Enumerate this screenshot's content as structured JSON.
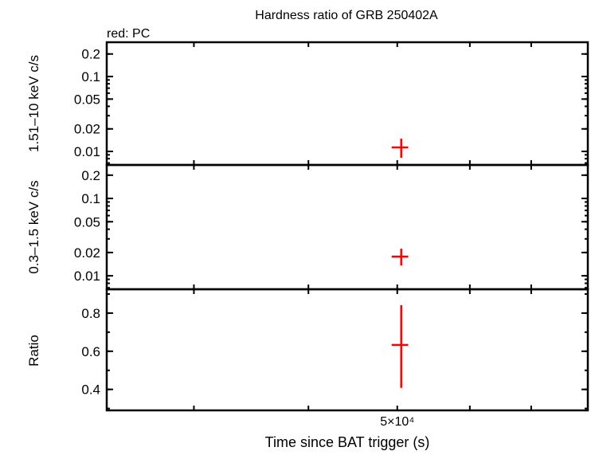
{
  "chart_data": {
    "type": "scatter",
    "title": "Hardness ratio of GRB 250402A",
    "legend_note": "red: PC",
    "xlabel": "Time since BAT trigger (s)",
    "xscale": "log",
    "xlim": [
      24100,
      80700
    ],
    "x_tick_labels": [
      {
        "value": 50000,
        "label": "5×10⁴"
      }
    ],
    "x_ticks_unlabeled": [
      30000,
      40000,
      60000,
      70000
    ],
    "colors": {
      "PC": "#ff0000",
      "axes": "#000000"
    },
    "panels": [
      {
        "ylabel": "1.51–10 keV c/s",
        "yscale": "log",
        "ylim": [
          0.0066,
          0.287
        ],
        "y_tick_labels": [
          "0.2",
          "0.1",
          "0.05",
          "0.02",
          "0.01"
        ],
        "y_tick_values": [
          0.2,
          0.1,
          0.05,
          0.02,
          0.01
        ],
        "points": [
          {
            "series": "PC",
            "x": 50500,
            "xerr": [
              49300,
              51400
            ],
            "y": 0.0113,
            "yerr": [
              0.0082,
              0.0148
            ]
          }
        ]
      },
      {
        "ylabel": "0.3–1.5 keV c/s",
        "yscale": "log",
        "ylim": [
          0.0067,
          0.271
        ],
        "y_tick_labels": [
          "0.2",
          "0.1",
          "0.05",
          "0.02",
          "0.01"
        ],
        "y_tick_values": [
          0.2,
          0.1,
          0.05,
          0.02,
          0.01
        ],
        "points": [
          {
            "series": "PC",
            "x": 50500,
            "xerr": [
              49300,
              51400
            ],
            "y": 0.0177,
            "yerr": [
              0.0136,
              0.0224
            ]
          }
        ]
      },
      {
        "ylabel": "Ratio",
        "yscale": "linear",
        "ylim": [
          0.29,
          0.925
        ],
        "y_tick_labels": [
          "0.8",
          "0.6",
          "0.4"
        ],
        "y_tick_values": [
          0.8,
          0.6,
          0.4
        ],
        "points": [
          {
            "series": "PC",
            "x": 50500,
            "xerr": [
              49300,
              51400
            ],
            "y": 0.633,
            "yerr": [
              0.408,
              0.842
            ]
          }
        ]
      }
    ]
  }
}
